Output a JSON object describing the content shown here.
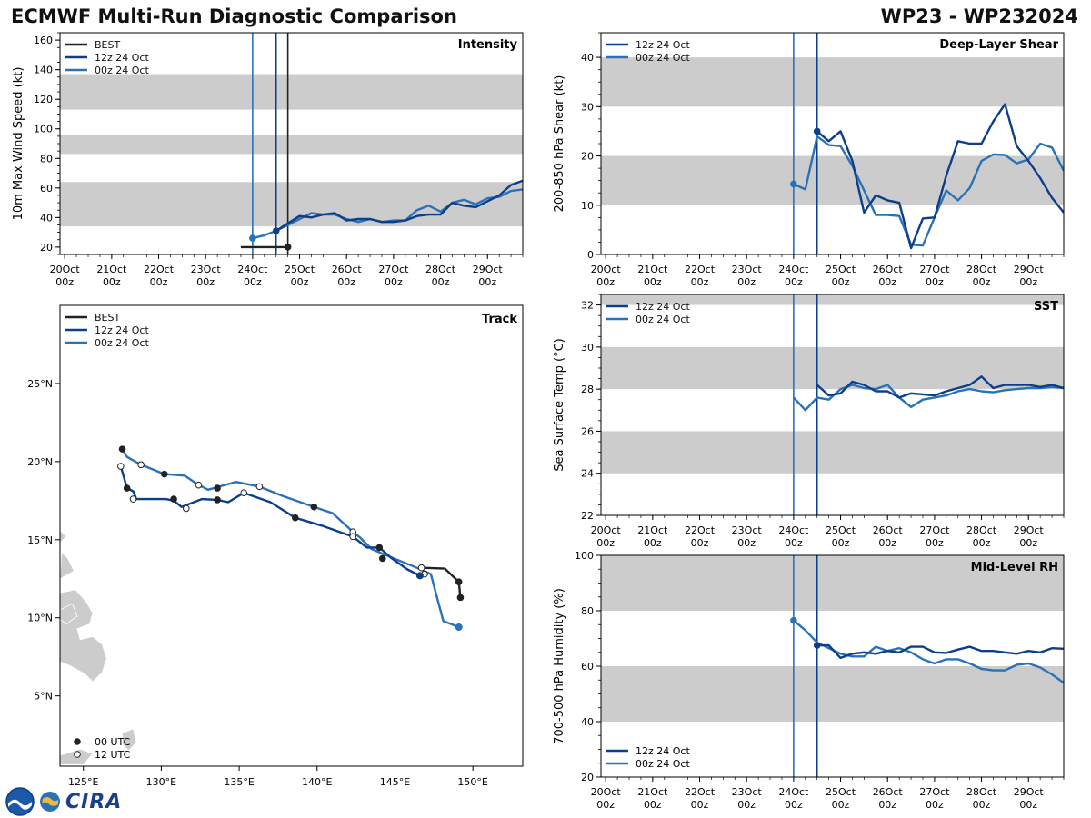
{
  "header": {
    "title": "ECMWF Multi-Run Diagnostic Comparison",
    "storm": "WP23 - WP232024"
  },
  "colors": {
    "best": "#222222",
    "run12z": "#0d3e8a",
    "run00z": "#2a72b8",
    "band": "#cccccc"
  },
  "legend": {
    "best": "BEST",
    "run12z": "12z 24 Oct",
    "run00z": "00z 24 Oct",
    "utc00": "00 UTC",
    "utc12": "12 UTC"
  },
  "logo": {
    "text": "CIRA",
    "badge": "NOAA"
  },
  "time_ticks": {
    "labels": [
      "20Oct",
      "21Oct",
      "22Oct",
      "23Oct",
      "24Oct",
      "25Oct",
      "26Oct",
      "27Oct",
      "28Oct",
      "29Oct"
    ],
    "sublabel": "00z"
  },
  "chart_data": [
    {
      "id": "intensity",
      "type": "line",
      "title": "Intensity",
      "ylabel": "10m Max Wind Speed (kt)",
      "xlim": [
        -0.1,
        9.75
      ],
      "ylim": [
        15,
        165
      ],
      "yticks": [
        20,
        40,
        60,
        80,
        100,
        120,
        140,
        160
      ],
      "bands": [
        [
          34,
          64
        ],
        [
          83,
          96
        ],
        [
          113,
          137
        ]
      ],
      "vlines": [
        {
          "x": 4.0,
          "series": "run00z"
        },
        {
          "x": 4.5,
          "series": "run12z"
        },
        {
          "x": 4.75,
          "series": "best"
        }
      ],
      "series": [
        {
          "name": "BEST",
          "key": "best",
          "x": [
            3.75,
            4.75
          ],
          "y": [
            20,
            20
          ],
          "end_marker": [
            4.75,
            20
          ]
        },
        {
          "name": "12z 24 Oct",
          "key": "run12z",
          "start_marker": [
            4.5,
            31
          ],
          "x": [
            4.5,
            4.75,
            5.0,
            5.25,
            5.5,
            5.75,
            6.0,
            6.25,
            6.5,
            6.75,
            7.0,
            7.25,
            7.5,
            7.75,
            8.0,
            8.25,
            8.5,
            8.75,
            9.0,
            9.25,
            9.5,
            9.75
          ],
          "y": [
            31,
            36,
            41,
            40,
            42,
            43,
            38,
            39,
            39,
            37,
            37,
            38,
            41,
            42,
            42,
            50,
            48,
            47,
            51,
            55,
            62,
            65
          ]
        },
        {
          "name": "00z 24 Oct",
          "key": "run00z",
          "start_marker": [
            4.0,
            26
          ],
          "x": [
            4.0,
            4.25,
            4.5,
            4.75,
            5.0,
            5.25,
            5.5,
            5.75,
            6.0,
            6.25,
            6.5,
            6.75,
            7.0,
            7.25,
            7.5,
            7.75,
            8.0,
            8.25,
            8.5,
            8.75,
            9.0,
            9.25,
            9.5,
            9.75
          ],
          "y": [
            26,
            28,
            31,
            35,
            39,
            43,
            42,
            42,
            39,
            37,
            39,
            37,
            38,
            38,
            45,
            48,
            44,
            50,
            52,
            49,
            53,
            54,
            58,
            59
          ]
        }
      ]
    },
    {
      "id": "shear",
      "type": "line",
      "title": "Deep-Layer Shear",
      "ylabel": "200-850 hPa Shear (kt)",
      "xlim": [
        -0.1,
        9.75
      ],
      "ylim": [
        0,
        45
      ],
      "yticks": [
        0,
        10,
        20,
        30,
        40
      ],
      "bands": [
        [
          10,
          20
        ],
        [
          30,
          40
        ]
      ],
      "vlines": [
        {
          "x": 4.0,
          "series": "run00z"
        },
        {
          "x": 4.5,
          "series": "run12z"
        }
      ],
      "series": [
        {
          "name": "12z 24 Oct",
          "key": "run12z",
          "start_marker": [
            4.5,
            25
          ],
          "x": [
            4.5,
            4.75,
            5.0,
            5.25,
            5.5,
            5.75,
            6.0,
            6.25,
            6.5,
            6.75,
            7.0,
            7.25,
            7.5,
            7.75,
            8.0,
            8.25,
            8.5,
            8.75,
            9.0,
            9.25,
            9.5,
            9.75
          ],
          "y": [
            25,
            23,
            25,
            19,
            8.5,
            12,
            11,
            10.5,
            1.3,
            7.3,
            7.5,
            16,
            23,
            22.5,
            22.5,
            27,
            30.5,
            22,
            19,
            15.5,
            11.5,
            8.5
          ]
        },
        {
          "name": "00z 24 Oct",
          "key": "run00z",
          "start_marker": [
            4.0,
            14.3
          ],
          "x": [
            4.0,
            4.25,
            4.5,
            4.75,
            5.0,
            5.25,
            5.5,
            5.75,
            6.0,
            6.25,
            6.5,
            6.75,
            7.0,
            7.25,
            7.5,
            7.75,
            8.0,
            8.25,
            8.5,
            8.75,
            9.0,
            9.25,
            9.5,
            9.75
          ],
          "y": [
            14.3,
            13.2,
            24,
            22.2,
            22,
            18,
            13,
            8,
            8,
            7.8,
            2,
            1.8,
            7.5,
            13,
            11,
            13.5,
            19,
            20.3,
            20.2,
            18.5,
            19.3,
            22.5,
            21.7,
            17
          ]
        }
      ]
    },
    {
      "id": "sst",
      "type": "line",
      "title": "SST",
      "ylabel": "Sea Surface Temp (°C)",
      "xlim": [
        -0.1,
        9.75
      ],
      "ylim": [
        22,
        32.5
      ],
      "yticks": [
        22,
        24,
        26,
        28,
        30,
        32
      ],
      "bands": [
        [
          24,
          26
        ],
        [
          28,
          30
        ],
        [
          32,
          32.5
        ]
      ],
      "vlines": [
        {
          "x": 4.0,
          "series": "run00z"
        },
        {
          "x": 4.5,
          "series": "run12z"
        }
      ],
      "series": [
        {
          "name": "12z 24 Oct",
          "key": "run12z",
          "x": [
            4.5,
            4.75,
            5.0,
            5.25,
            5.5,
            5.75,
            6.0,
            6.25,
            6.5,
            6.75,
            7.0,
            7.25,
            7.5,
            7.75,
            8.0,
            8.25,
            8.5,
            8.75,
            9.0,
            9.25,
            9.5,
            9.75
          ],
          "y": [
            28.2,
            27.7,
            27.8,
            28.35,
            28.2,
            27.9,
            27.9,
            27.6,
            27.8,
            27.75,
            27.7,
            27.9,
            28.05,
            28.2,
            28.6,
            28.05,
            28.2,
            28.2,
            28.2,
            28.1,
            28.2,
            28.05
          ]
        },
        {
          "name": "00z 24 Oct",
          "key": "run00z",
          "x": [
            4.0,
            4.25,
            4.5,
            4.75,
            5.0,
            5.25,
            5.5,
            5.75,
            6.0,
            6.25,
            6.5,
            6.75,
            7.0,
            7.25,
            7.5,
            7.75,
            8.0,
            8.25,
            8.5,
            8.75,
            9.0,
            9.25,
            9.5,
            9.75
          ],
          "y": [
            27.6,
            27.0,
            27.6,
            27.5,
            28.0,
            28.2,
            28.05,
            28.0,
            28.2,
            27.6,
            27.15,
            27.5,
            27.6,
            27.7,
            27.9,
            28.0,
            27.9,
            27.85,
            27.95,
            28.0,
            28.05,
            28.05,
            28.1,
            28.05
          ]
        }
      ]
    },
    {
      "id": "rh",
      "type": "line",
      "title": "Mid-Level RH",
      "ylabel": "700-500 hPa Humidity (%)",
      "xlim": [
        -0.1,
        9.75
      ],
      "ylim": [
        20,
        100
      ],
      "yticks": [
        20,
        40,
        60,
        80,
        100
      ],
      "bands": [
        [
          40,
          60
        ],
        [
          80,
          100
        ]
      ],
      "vlines": [
        {
          "x": 4.0,
          "series": "run00z"
        },
        {
          "x": 4.5,
          "series": "run12z"
        }
      ],
      "series": [
        {
          "name": "12z 24 Oct",
          "key": "run12z",
          "start_marker": [
            4.5,
            67.5
          ],
          "x": [
            4.5,
            4.75,
            5.0,
            5.25,
            5.5,
            5.75,
            6.0,
            6.25,
            6.5,
            6.75,
            7.0,
            7.25,
            7.5,
            7.75,
            8.0,
            8.25,
            8.5,
            8.75,
            9.0,
            9.25,
            9.5,
            9.75
          ],
          "y": [
            67.5,
            67.5,
            63,
            64.5,
            65,
            64.5,
            65.5,
            65,
            67,
            67,
            65,
            64.8,
            66,
            67,
            65.5,
            65.5,
            65,
            64.5,
            65.5,
            65,
            66.5,
            66.3
          ]
        },
        {
          "name": "00z 24 Oct",
          "key": "run00z",
          "start_marker": [
            4.0,
            76.5
          ],
          "x": [
            4.0,
            4.25,
            4.5,
            4.75,
            5.0,
            5.25,
            5.5,
            5.75,
            6.0,
            6.25,
            6.5,
            6.75,
            7.0,
            7.25,
            7.5,
            7.75,
            8.0,
            8.25,
            8.5,
            8.75,
            9.0,
            9.25,
            9.5,
            9.75
          ],
          "y": [
            76.5,
            73,
            68.5,
            66.5,
            64.5,
            63.5,
            63.5,
            67,
            65.5,
            66.5,
            65,
            62.5,
            61,
            62.5,
            62.5,
            61,
            59,
            58.5,
            58.5,
            60.5,
            61,
            59.5,
            57,
            54
          ]
        }
      ]
    },
    {
      "id": "track",
      "type": "scatter",
      "title": "Track",
      "xlim": [
        123.5,
        153.2
      ],
      "ylim": [
        0.5,
        30
      ],
      "xticks": [
        125,
        130,
        135,
        140,
        145,
        150
      ],
      "xtick_labels": [
        "125°E",
        "130°E",
        "135°E",
        "140°E",
        "145°E",
        "150°E"
      ],
      "yticks": [
        5,
        10,
        15,
        20,
        25
      ],
      "ytick_labels": [
        "5°N",
        "10°N",
        "15°N",
        "20°N",
        "25°N"
      ],
      "series": [
        {
          "name": "BEST",
          "key": "best",
          "lon": [
            149.2,
            149.1,
            148.2,
            146.8
          ],
          "lat": [
            11.3,
            12.3,
            13.15,
            13.2
          ],
          "dots": [
            [
              149.2,
              11.3,
              "00"
            ],
            [
              149.1,
              12.3,
              "00"
            ]
          ]
        },
        {
          "name": "12z 24 Oct",
          "key": "run12z",
          "end_marker": [
            146.6,
            12.7
          ],
          "lon": [
            146.6,
            145.8,
            144.8,
            144.0,
            143.2,
            142.3,
            140.3,
            138.6,
            137.0,
            135.3,
            134.3,
            133.6,
            132.6,
            131.3,
            130.8,
            130.3,
            128.4,
            128.2,
            127.8,
            127.6,
            127.4
          ],
          "lat": [
            12.7,
            13.1,
            13.8,
            14.5,
            14.5,
            15.2,
            15.9,
            16.4,
            17.4,
            18.0,
            17.4,
            17.55,
            17.6,
            17.1,
            17.5,
            17.6,
            17.6,
            18.1,
            18.3,
            19.0,
            19.7
          ],
          "dots": [
            [
              144.0,
              14.5,
              "00"
            ],
            [
              142.3,
              15.2,
              "12"
            ],
            [
              138.6,
              16.4,
              "00"
            ],
            [
              135.3,
              18.0,
              "12"
            ],
            [
              133.6,
              17.55,
              "00"
            ],
            [
              131.6,
              17.0,
              "12"
            ],
            [
              130.8,
              17.6,
              "00"
            ],
            [
              128.2,
              17.6,
              "12"
            ],
            [
              127.8,
              18.3,
              "00"
            ],
            [
              127.4,
              19.7,
              "12"
            ]
          ]
        },
        {
          "name": "00z 24 Oct",
          "key": "run00z",
          "end_marker": [
            149.1,
            9.4
          ],
          "lon": [
            149.1,
            148.1,
            147.3,
            146.4,
            144.7,
            143.5,
            142.8,
            142.3,
            141.0,
            139.8,
            137.8,
            136.3,
            134.8,
            133.0,
            132.4,
            131.5,
            130.2,
            128.7,
            127.8,
            127.5
          ],
          "lat": [
            9.4,
            9.8,
            12.8,
            13.2,
            13.9,
            14.4,
            15.1,
            15.5,
            16.7,
            17.1,
            17.8,
            18.4,
            18.7,
            18.2,
            18.5,
            19.1,
            19.2,
            19.8,
            20.3,
            20.8
          ],
          "dots": [
            [
              146.9,
              12.8,
              "12"
            ],
            [
              146.7,
              13.2,
              "12"
            ],
            [
              144.2,
              13.8,
              "00"
            ],
            [
              142.3,
              15.5,
              "12"
            ],
            [
              139.8,
              17.1,
              "00"
            ],
            [
              136.3,
              18.4,
              "12"
            ],
            [
              133.6,
              18.3,
              "00"
            ],
            [
              132.4,
              18.5,
              "12"
            ],
            [
              130.2,
              19.2,
              "00"
            ],
            [
              128.7,
              19.8,
              "12"
            ],
            [
              127.5,
              20.8,
              "00"
            ]
          ]
        }
      ]
    }
  ]
}
